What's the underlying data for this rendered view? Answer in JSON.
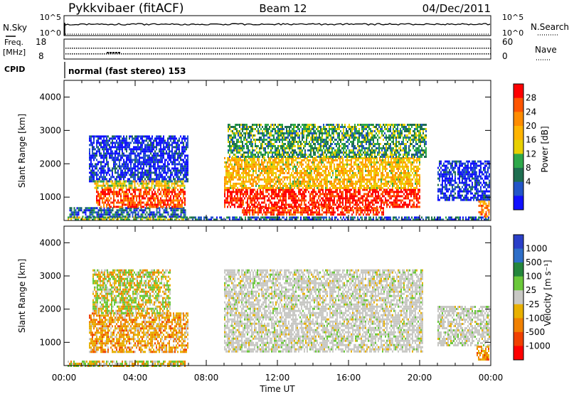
{
  "header": {
    "station": "Pykkvibaer (fitACF)",
    "beam": "Beam 12",
    "date": "04/Dec/2011"
  },
  "status_panels": {
    "nsky_label": "N.Sky",
    "nsky_ticks": [
      "10^5",
      "10^0"
    ],
    "nsearch_label": "N.Search",
    "nsearch_ticks": [
      "10^5",
      "10^0"
    ],
    "freq_label": [
      "Freq.",
      "[MHz]"
    ],
    "freq_ticks": [
      "18",
      "8"
    ],
    "nave_label": "Nave",
    "nave_ticks": [
      "60",
      "0"
    ],
    "cpid_label": "CPID",
    "cpid_text": "normal (fast stereo) 153"
  },
  "chart_data": [
    {
      "type": "heatmap",
      "title": "",
      "xlabel": "Time UT",
      "ylabel": "Slant Range [km]",
      "x_ticks": [
        "00:00",
        "04:00",
        "08:00",
        "12:00",
        "16:00",
        "20:00",
        "00:00"
      ],
      "y_ticks": [
        "1000",
        "2000",
        "3000",
        "4000"
      ],
      "xlim_hours": [
        0,
        24
      ],
      "ylim_km": [
        300,
        4500
      ],
      "colorbar": {
        "label": "Power [dB]",
        "ticks": [
          "28",
          "24",
          "20",
          "16",
          "12",
          "8",
          "4"
        ],
        "colors": [
          "#ff0000",
          "#ff5500",
          "#ff8c00",
          "#ffb400",
          "#e8d000",
          "#2ea84a",
          "#1e6e50",
          "#2255c8",
          "#1010ff"
        ]
      },
      "regions": [
        {
          "t0": 0.2,
          "t1": 6.8,
          "r0": 300,
          "r1": 420,
          "level": 0.45
        },
        {
          "t0": 0.3,
          "t1": 6.8,
          "r0": 420,
          "r1": 700,
          "level": 0.2
        },
        {
          "t0": 1.4,
          "t1": 7.0,
          "r0": 1450,
          "r1": 2850,
          "level": 0.1
        },
        {
          "t0": 1.7,
          "t1": 6.8,
          "r0": 1250,
          "r1": 1500,
          "level": 0.55
        },
        {
          "t0": 1.8,
          "t1": 6.8,
          "r0": 700,
          "r1": 1250,
          "level": 0.85
        },
        {
          "t0": 9.0,
          "t1": 20.0,
          "r0": 700,
          "r1": 1250,
          "level": 0.95
        },
        {
          "t0": 9.0,
          "t1": 20.0,
          "r0": 1250,
          "r1": 2200,
          "level": 0.6
        },
        {
          "t0": 9.2,
          "t1": 20.4,
          "r0": 2200,
          "r1": 3200,
          "level": 0.35
        },
        {
          "t0": 10.0,
          "t1": 18.0,
          "r0": 450,
          "r1": 700,
          "level": 0.9
        },
        {
          "t0": 6.8,
          "t1": 23.9,
          "r0": 300,
          "r1": 420,
          "level": 0.2
        },
        {
          "t0": 21.0,
          "t1": 23.9,
          "r0": 900,
          "r1": 2100,
          "level": 0.1
        },
        {
          "t0": 23.3,
          "t1": 23.9,
          "r0": 450,
          "r1": 900,
          "level": 0.75
        }
      ]
    },
    {
      "type": "heatmap",
      "title": "",
      "xlabel": "Time UT",
      "ylabel": "Slant Range [km]",
      "x_ticks": [
        "00:00",
        "04:00",
        "08:00",
        "12:00",
        "16:00",
        "20:00",
        "00:00"
      ],
      "y_ticks": [
        "1000",
        "2000",
        "3000",
        "4000"
      ],
      "xlim_hours": [
        0,
        24
      ],
      "ylim_km": [
        300,
        4500
      ],
      "colorbar": {
        "label": "Velocity [m s⁻¹]",
        "ticks": [
          "1000",
          "500",
          "100",
          "25",
          "-25",
          "-100",
          "-500",
          "-1000"
        ],
        "colors": [
          "#2a3fc8",
          "#2e6ec8",
          "#24863c",
          "#6ac83a",
          "#c8c8c4",
          "#e8b000",
          "#f08000",
          "#f04000",
          "#ff0000"
        ]
      },
      "regions": [
        {
          "t0": 0.2,
          "t1": 6.8,
          "r0": 300,
          "r1": 450,
          "class": "mixed"
        },
        {
          "t0": 1.4,
          "t1": 7.0,
          "r0": 700,
          "r1": 1900,
          "class": "negative"
        },
        {
          "t0": 1.6,
          "t1": 6.0,
          "r0": 1900,
          "r1": 3200,
          "class": "mixed"
        },
        {
          "t0": 9.0,
          "t1": 20.2,
          "r0": 700,
          "r1": 3200,
          "class": "near-zero"
        },
        {
          "t0": 21.0,
          "t1": 23.9,
          "r0": 900,
          "r1": 2100,
          "class": "near-zero"
        },
        {
          "t0": 23.2,
          "t1": 23.9,
          "r0": 450,
          "r1": 900,
          "class": "negative"
        }
      ]
    }
  ]
}
